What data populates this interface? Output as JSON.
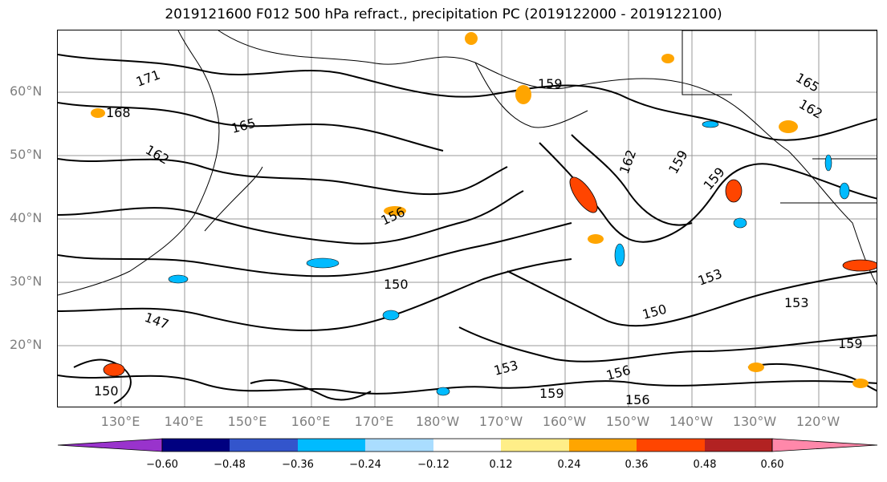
{
  "title": "2019121600 F012 500 hPa refract., precipitation PC (2019122000 - 2019122100)",
  "lat_labels": [
    "60°N",
    "50°N",
    "40°N",
    "30°N",
    "20°N"
  ],
  "lon_labels": [
    "130°E",
    "140°E",
    "150°E",
    "160°E",
    "170°E",
    "180°W",
    "170°W",
    "160°W",
    "150°W",
    "140°W",
    "130°W",
    "120°W"
  ],
  "contour_labels": [
    "171",
    "168",
    "165",
    "162",
    "159",
    "159",
    "159",
    "162",
    "165",
    "162",
    "156",
    "150",
    "147",
    "153",
    "150",
    "153",
    "150",
    "159",
    "156",
    "156",
    "159",
    "153"
  ],
  "colorbar": {
    "ticks": [
      "−0.60",
      "−0.48",
      "−0.36",
      "−0.24",
      "−0.12",
      "0.12",
      "0.24",
      "0.36",
      "0.48",
      "0.60"
    ],
    "colors": [
      "#9933cc",
      "#000080",
      "#3355cc",
      "#00bbff",
      "#aaddff",
      "#ffffff",
      "#ffee88",
      "#ffa500",
      "#ff4500",
      "#b22222",
      "#ff88aa",
      "#ff88aa"
    ]
  }
}
